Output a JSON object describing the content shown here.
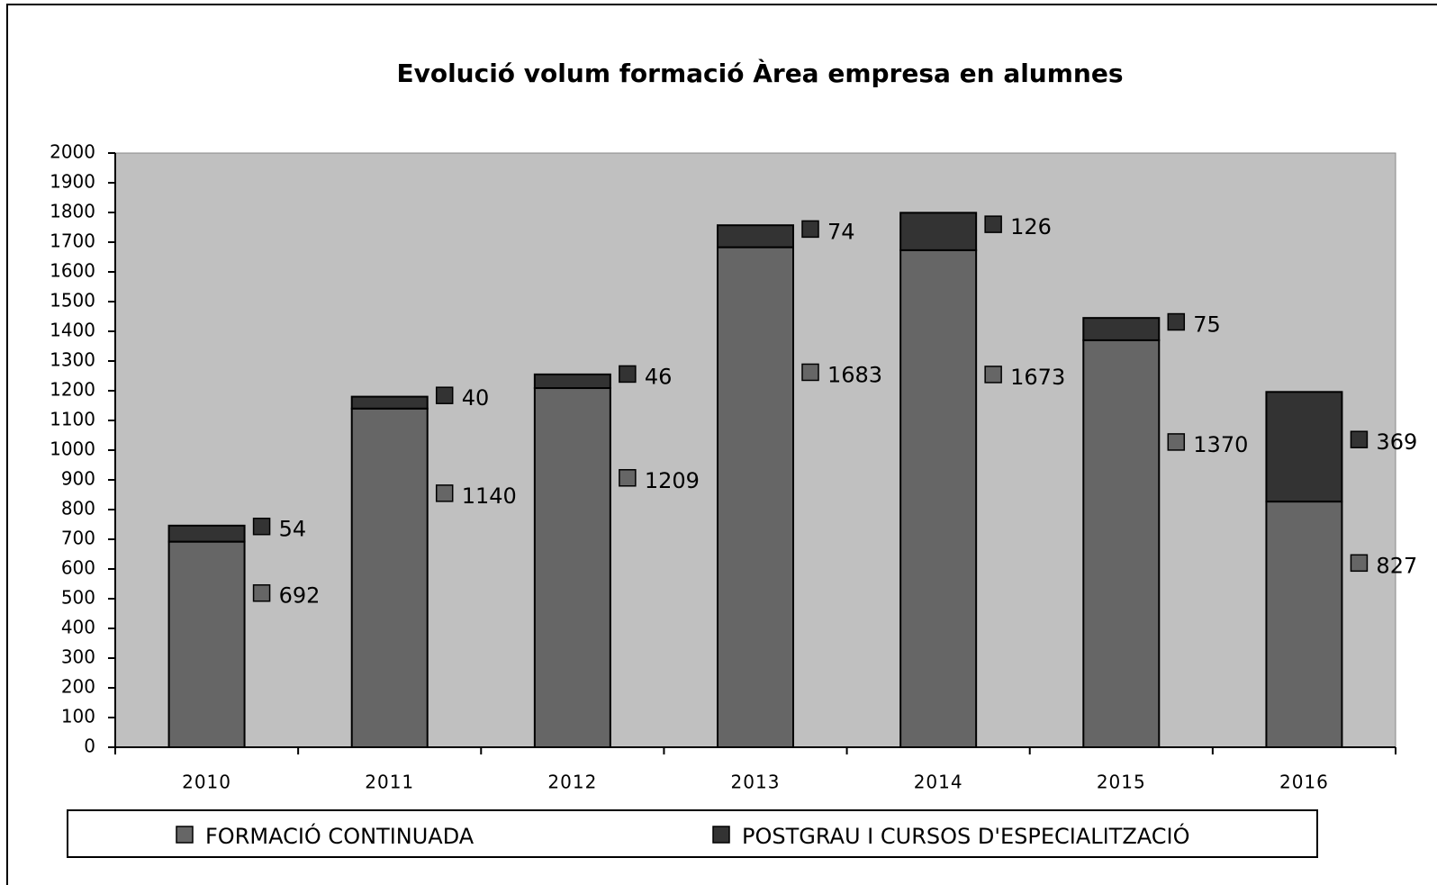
{
  "chart_data": {
    "type": "stacked-bar",
    "title": "Evolució volum formació Àrea empresa en alumnes",
    "categories": [
      "2010",
      "2011",
      "2012",
      "2013",
      "2014",
      "2015",
      "2016"
    ],
    "series": [
      {
        "name": "FORMACIÓ CONTINUADA",
        "color": "#666666",
        "values": [
          692,
          1140,
          1209,
          1683,
          1673,
          1370,
          827
        ]
      },
      {
        "name": "POSTGRAU I CURSOS D'ESPECIALITZACIÓ",
        "color": "#333333",
        "values": [
          54,
          40,
          46,
          74,
          126,
          75,
          369
        ]
      }
    ],
    "ylim": [
      0,
      2000
    ],
    "yticks": [
      0,
      100,
      200,
      300,
      400,
      500,
      600,
      700,
      800,
      900,
      1000,
      1100,
      1200,
      1300,
      1400,
      1500,
      1600,
      1700,
      1800,
      1900,
      2000
    ],
    "legend": "bottom",
    "plot_background": "#c0c0c0"
  }
}
